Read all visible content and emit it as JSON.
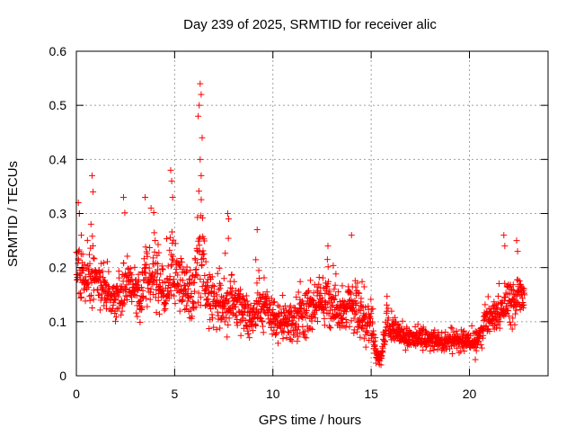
{
  "chart_data": {
    "type": "scatter",
    "title": "Day 239 of 2025, SRMTID for receiver alic",
    "xlabel": "GPS time / hours",
    "ylabel": "SRMTID / TECUs",
    "xlim": [
      0,
      24
    ],
    "ylim": [
      0,
      0.6
    ],
    "xticks": [
      0,
      5,
      10,
      15,
      20
    ],
    "xtick_labels": [
      "0",
      "5",
      "10",
      "15",
      "20"
    ],
    "yticks": [
      0,
      0.1,
      0.2,
      0.3,
      0.4,
      0.5,
      0.6
    ],
    "ytick_labels": [
      "0",
      "0.1",
      "0.2",
      "0.3",
      "0.4",
      "0.5",
      "0.6"
    ],
    "grid": true,
    "marker": "+",
    "color": "#ff0000",
    "series": [
      {
        "name": "SRMTID",
        "x_range": [
          0.0,
          22.8
        ],
        "envelope": {
          "x": [
            0,
            0.2,
            0.5,
            0.8,
            1.0,
            1.5,
            2.0,
            2.3,
            2.5,
            3.0,
            3.3,
            3.5,
            3.8,
            4.0,
            4.5,
            4.8,
            5.0,
            5.5,
            6.0,
            6.2,
            6.4,
            6.6,
            7.0,
            7.5,
            7.8,
            8.0,
            8.5,
            9.0,
            9.3,
            9.6,
            10.0,
            10.5,
            11.0,
            11.5,
            12.0,
            12.3,
            12.8,
            13.2,
            13.5,
            14.0,
            14.2,
            14.6,
            15.0,
            15.3,
            15.5,
            15.8,
            16.0,
            16.5,
            17.0,
            17.5,
            18.0,
            18.5,
            19.0,
            19.5,
            20.0,
            20.3,
            20.8,
            21.3,
            21.7,
            22.0,
            22.3,
            22.5,
            22.8
          ],
          "low": [
            0.14,
            0.12,
            0.11,
            0.1,
            0.12,
            0.1,
            0.08,
            0.09,
            0.1,
            0.11,
            0.06,
            0.11,
            0.1,
            0.11,
            0.08,
            0.1,
            0.1,
            0.1,
            0.07,
            0.09,
            0.1,
            0.09,
            0.08,
            0.07,
            0.06,
            0.08,
            0.06,
            0.05,
            0.05,
            0.09,
            0.06,
            0.05,
            0.05,
            0.05,
            0.06,
            0.07,
            0.07,
            0.06,
            0.07,
            0.06,
            0.07,
            0.05,
            0.04,
            0.02,
            0.02,
            0.06,
            0.05,
            0.04,
            0.04,
            0.04,
            0.04,
            0.04,
            0.04,
            0.04,
            0.03,
            0.03,
            0.06,
            0.07,
            0.08,
            0.08,
            0.08,
            0.09,
            0.1
          ],
          "high": [
            0.32,
            0.3,
            0.26,
            0.37,
            0.27,
            0.25,
            0.22,
            0.24,
            0.33,
            0.24,
            0.26,
            0.33,
            0.31,
            0.35,
            0.27,
            0.38,
            0.33,
            0.26,
            0.27,
            0.5,
            0.54,
            0.27,
            0.24,
            0.22,
            0.3,
            0.24,
            0.2,
            0.18,
            0.27,
            0.18,
            0.16,
            0.16,
            0.18,
            0.21,
            0.24,
            0.22,
            0.24,
            0.22,
            0.2,
            0.26,
            0.24,
            0.2,
            0.17,
            0.05,
            0.05,
            0.18,
            0.15,
            0.12,
            0.1,
            0.1,
            0.09,
            0.09,
            0.09,
            0.09,
            0.1,
            0.1,
            0.15,
            0.16,
            0.18,
            0.26,
            0.2,
            0.25,
            0.2
          ]
        },
        "points": [
          [
            0.1,
            0.32
          ],
          [
            0.15,
            0.3
          ],
          [
            0.25,
            0.26
          ],
          [
            0.8,
            0.37
          ],
          [
            0.85,
            0.34
          ],
          [
            2.4,
            0.33
          ],
          [
            3.5,
            0.33
          ],
          [
            3.8,
            0.31
          ],
          [
            4.8,
            0.38
          ],
          [
            4.85,
            0.36
          ],
          [
            4.9,
            0.33
          ],
          [
            6.2,
            0.48
          ],
          [
            6.25,
            0.5
          ],
          [
            6.3,
            0.54
          ],
          [
            6.35,
            0.52
          ],
          [
            6.4,
            0.44
          ],
          [
            6.3,
            0.4
          ],
          [
            6.35,
            0.37
          ],
          [
            7.7,
            0.3
          ],
          [
            7.75,
            0.29
          ],
          [
            9.2,
            0.27
          ],
          [
            12.8,
            0.24
          ],
          [
            14.0,
            0.26
          ],
          [
            15.4,
            0.03
          ],
          [
            15.5,
            0.02
          ],
          [
            20.3,
            0.03
          ],
          [
            21.75,
            0.26
          ],
          [
            21.8,
            0.24
          ],
          [
            22.4,
            0.25
          ],
          [
            22.45,
            0.23
          ]
        ]
      }
    ]
  }
}
